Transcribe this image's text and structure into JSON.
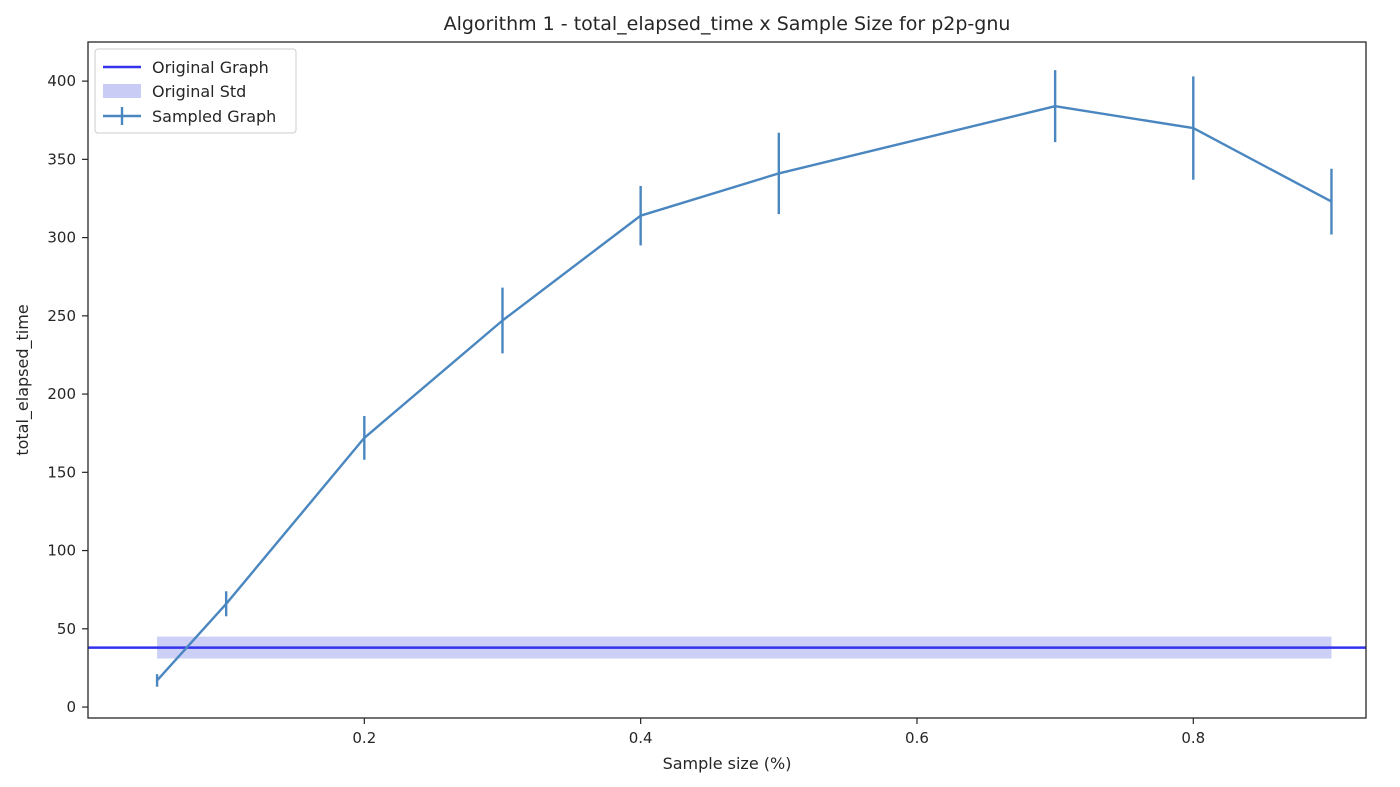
{
  "chart_data": {
    "type": "line",
    "title": "Algorithm 1 - total_elapsed_time x Sample Size for p2p-gnu",
    "xlabel": "Sample size (%)",
    "ylabel": "total_elapsed_time",
    "xlim": [
      0.0,
      0.925
    ],
    "ylim": [
      -7,
      425
    ],
    "xticks": [
      0.2,
      0.4,
      0.6,
      0.8
    ],
    "xtick_labels": [
      "0.2",
      "0.4",
      "0.6",
      "0.8"
    ],
    "yticks": [
      0,
      50,
      100,
      150,
      200,
      250,
      300,
      350,
      400
    ],
    "ytick_labels": [
      "0",
      "50",
      "100",
      "150",
      "200",
      "250",
      "300",
      "350",
      "400"
    ],
    "legend_position": "top-left",
    "grid": false,
    "original": {
      "name": "Original Graph",
      "value": 38,
      "color": "#3333ee"
    },
    "original_std": {
      "name": "Original Std",
      "low": 31,
      "high": 45,
      "x_range": [
        0.05,
        0.9
      ],
      "color": "#c9ccf5"
    },
    "series": [
      {
        "name": "Sampled Graph",
        "color": "#4a86bf",
        "x": [
          0.05,
          0.1,
          0.2,
          0.3,
          0.4,
          0.5,
          0.7,
          0.8,
          0.9
        ],
        "y": [
          17,
          66,
          172,
          247,
          314,
          341,
          384,
          370,
          323
        ],
        "yerr": [
          4,
          8,
          14,
          21,
          19,
          26,
          23,
          33,
          21
        ]
      }
    ]
  }
}
